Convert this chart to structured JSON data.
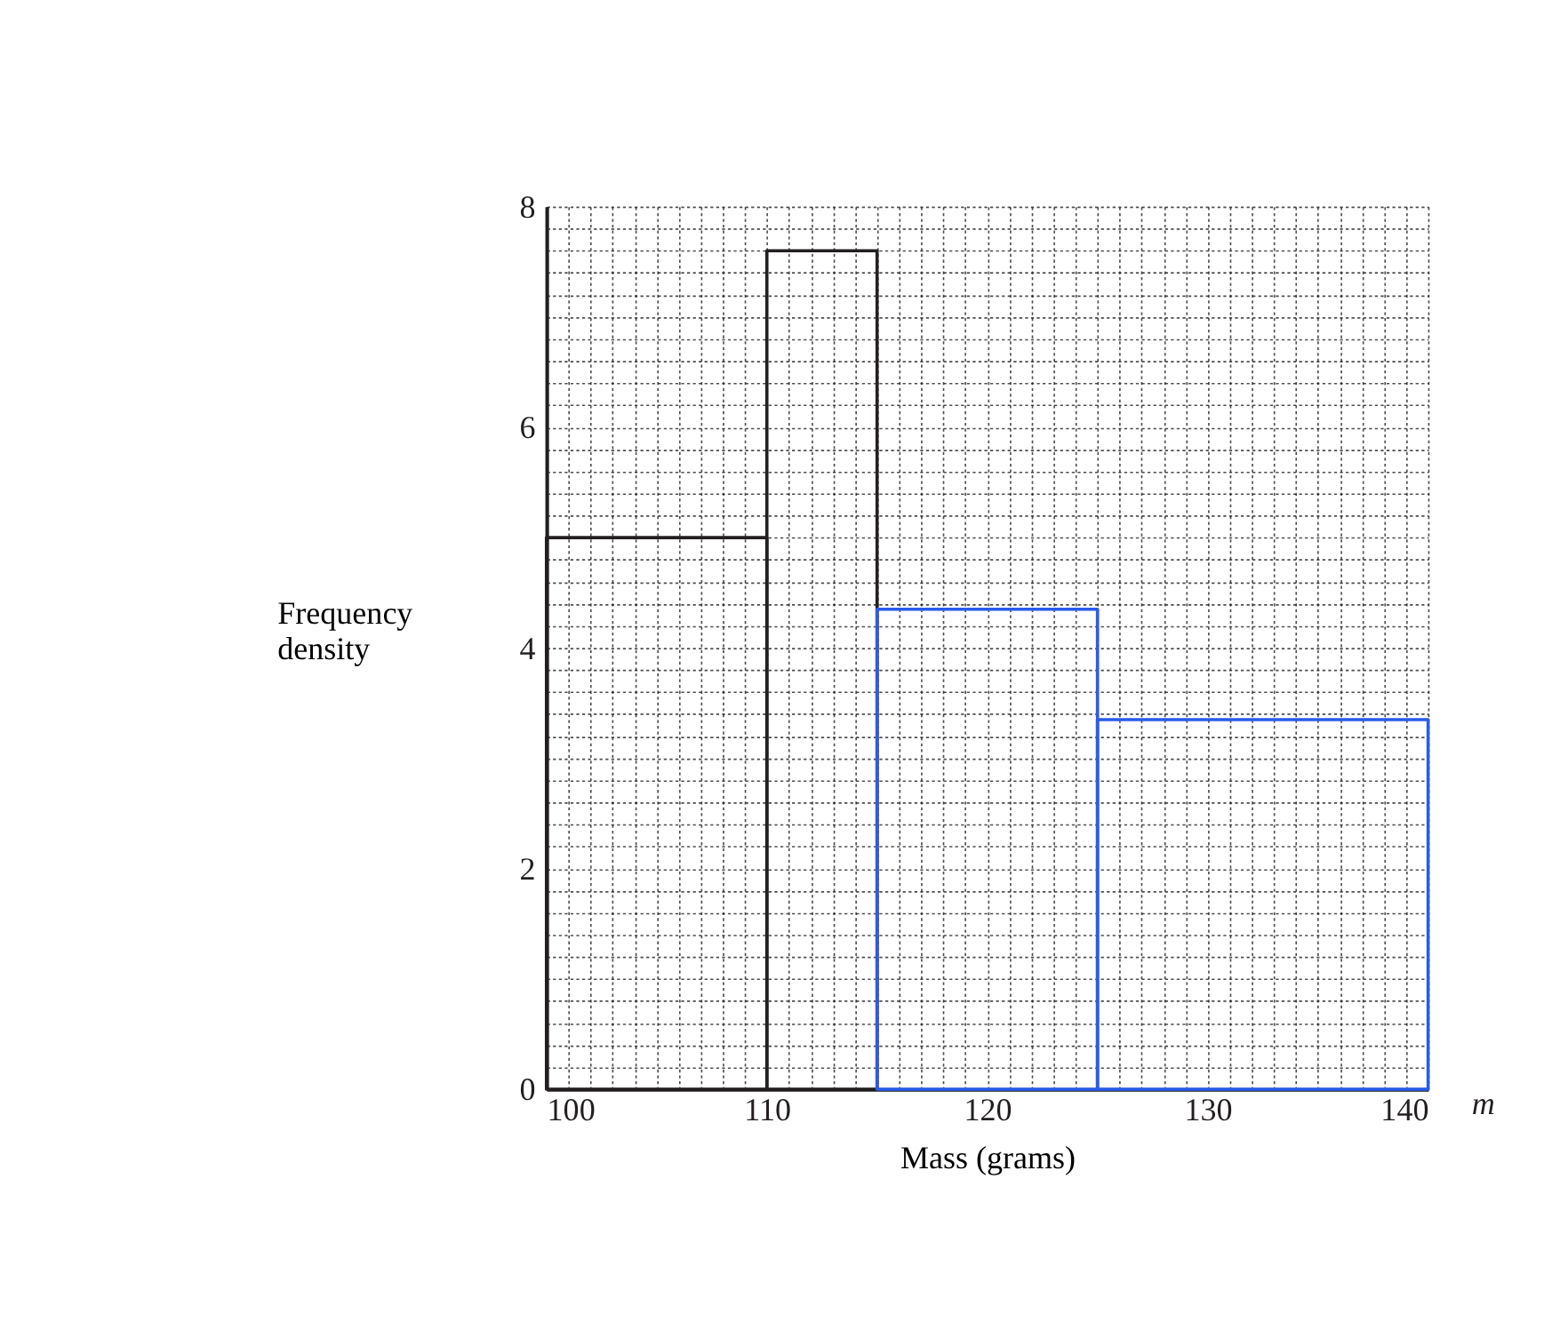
{
  "chart_data": {
    "type": "histogram",
    "xlabel": "Mass (grams)",
    "ylabel": "Frequency density",
    "annotations": [
      "m"
    ],
    "bins": [
      100,
      110,
      115,
      125,
      140
    ],
    "values": [
      5.0,
      7.6,
      4.35,
      3.35
    ],
    "colors": [
      "#231f20",
      "#231f20",
      "#2a5bea",
      "#2a5bea"
    ],
    "xlim": [
      100,
      140
    ],
    "ylim": [
      0,
      8
    ],
    "xticks": [
      100,
      {
        "value": 101,
        "label": null
      },
      {
        "value": 102,
        "label": null
      },
      {
        "value": 103,
        "label": null
      },
      {
        "value": 104,
        "label": null
      },
      {
        "value": 105,
        "label": null
      },
      {
        "value": 106,
        "label": null
      },
      {
        "value": 107,
        "label": null
      },
      {
        "value": 108,
        "label": null
      },
      {
        "value": 109,
        "label": null
      },
      110,
      {
        "value": 111,
        "label": null
      },
      {
        "value": 112,
        "label": null
      },
      {
        "value": 113,
        "label": null
      },
      {
        "value": 114,
        "label": null
      },
      {
        "value": 115,
        "label": null
      },
      {
        "value": 116,
        "label": null
      },
      {
        "value": 117,
        "label": null
      },
      {
        "value": 118,
        "label": null
      },
      {
        "value": 119,
        "label": null
      },
      120,
      {
        "value": 121,
        "label": null
      },
      {
        "value": 122,
        "label": null
      },
      {
        "value": 123,
        "label": null
      },
      {
        "value": 124,
        "label": null
      },
      {
        "value": 125,
        "label": null
      },
      {
        "value": 126,
        "label": null
      },
      {
        "value": 127,
        "label": null
      },
      {
        "value": 128,
        "label": null
      },
      {
        "value": 129,
        "label": null
      },
      130,
      {
        "value": 131,
        "label": null
      },
      {
        "value": 132,
        "label": null
      },
      {
        "value": 133,
        "label": null
      },
      {
        "value": 134,
        "label": null
      },
      {
        "value": 135,
        "label": null
      },
      {
        "value": 136,
        "label": null
      },
      {
        "value": 137,
        "label": null
      },
      {
        "value": 138,
        "label": null
      },
      {
        "value": 139,
        "label": null
      },
      140
    ],
    "yticks": [
      0,
      {
        "value": 0.2,
        "label": null
      },
      {
        "value": 0.4,
        "label": null
      },
      {
        "value": 0.6,
        "label": null
      },
      {
        "value": 0.8,
        "label": null
      },
      {
        "value": 1,
        "label": null
      },
      {
        "value": 1.2,
        "label": null
      },
      {
        "value": 1.4,
        "label": null
      },
      {
        "value": 1.6,
        "label": null
      },
      {
        "value": 1.8,
        "label": null
      },
      2,
      {
        "value": 2.2,
        "label": null
      },
      {
        "value": 2.4,
        "label": null
      },
      {
        "value": 2.6,
        "label": null
      },
      {
        "value": 2.8,
        "label": null
      },
      {
        "value": 3,
        "label": null
      },
      {
        "value": 3.2,
        "label": null
      },
      {
        "value": 3.4,
        "label": null
      },
      {
        "value": 3.6,
        "label": null
      },
      {
        "value": 3.8,
        "label": null
      },
      4,
      {
        "value": 4.2,
        "label": null
      },
      {
        "value": 4.4,
        "label": null
      },
      {
        "value": 4.6,
        "label": null
      },
      {
        "value": 4.8,
        "label": null
      },
      {
        "value": 5,
        "label": null
      },
      {
        "value": 5.2,
        "label": null
      },
      {
        "value": 5.4,
        "label": null
      },
      {
        "value": 5.6,
        "label": null
      },
      {
        "value": 5.8,
        "label": null
      },
      6,
      {
        "value": 6.2,
        "label": null
      },
      {
        "value": 6.4,
        "label": null
      },
      {
        "value": 6.6,
        "label": null
      },
      {
        "value": 6.8,
        "label": null
      },
      {
        "value": 7,
        "label": null
      },
      {
        "value": 7.2,
        "label": null
      },
      {
        "value": 7.4,
        "label": null
      },
      {
        "value": 7.6,
        "label": null
      },
      {
        "value": 7.8,
        "label": null
      },
      8
    ],
    "grid": true
  }
}
